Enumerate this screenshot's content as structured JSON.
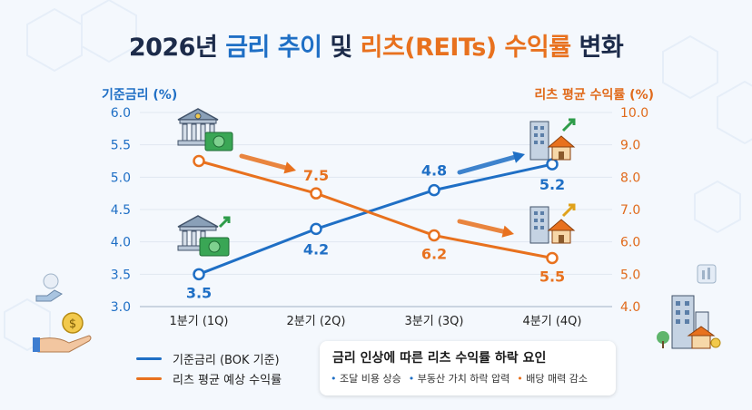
{
  "title": {
    "part1": "2026년 ",
    "part2": "금리 추이",
    "part3": " 및 ",
    "part4": "리츠(REITs) 수익률",
    "part5": " 변화"
  },
  "colors": {
    "rate": "#1f6fc5",
    "reit": "#e8711e",
    "title": "#1c2b4a"
  },
  "chart_data": {
    "type": "line",
    "title": "2026년 금리 추이 및 리츠(REITs) 수익률 변화",
    "categories": [
      "1분기 (1Q)",
      "2분기 (2Q)",
      "3분기 (3Q)",
      "4분기 (4Q)"
    ],
    "y_left": {
      "label": "기준금리 (%)",
      "ylim": [
        3.0,
        6.0
      ],
      "ticks": [
        "3.0",
        "3.5",
        "4.0",
        "4.5",
        "5.0",
        "5.5",
        "6.0"
      ]
    },
    "y_right": {
      "label": "리츠 평균 수익률 (%)",
      "ylim": [
        4.0,
        10.0
      ],
      "ticks": [
        "4.0",
        "5.0",
        "6.0",
        "7.0",
        "8.0",
        "9.0",
        "10.0"
      ]
    },
    "series": [
      {
        "name": "기준금리 (BOK 기준)",
        "axis": "left",
        "values": [
          3.5,
          4.2,
          4.8,
          5.2
        ],
        "labels": [
          "3.5",
          "4.2",
          "4.8",
          "5.2"
        ]
      },
      {
        "name": "리츠 평균 예상 수익률",
        "axis": "right",
        "values": [
          8.5,
          7.5,
          6.2,
          5.5
        ],
        "labels": [
          "",
          "7.5",
          "6.2",
          "5.5"
        ]
      }
    ],
    "grid": true,
    "legend": "bottom-left"
  },
  "factors": {
    "title": "금리 인상에 따른 리츠 수익률 하락 요인",
    "items": [
      "조달 비용 상승",
      "부동산 가치 하락 압력",
      "배당 매력 감소"
    ]
  },
  "icons": [
    "bank-money-icon",
    "bank-cash-growth-icon",
    "building-house-growth-icon",
    "building-house-growth-icon",
    "hand-coin-icon",
    "city-buildings-icon"
  ]
}
